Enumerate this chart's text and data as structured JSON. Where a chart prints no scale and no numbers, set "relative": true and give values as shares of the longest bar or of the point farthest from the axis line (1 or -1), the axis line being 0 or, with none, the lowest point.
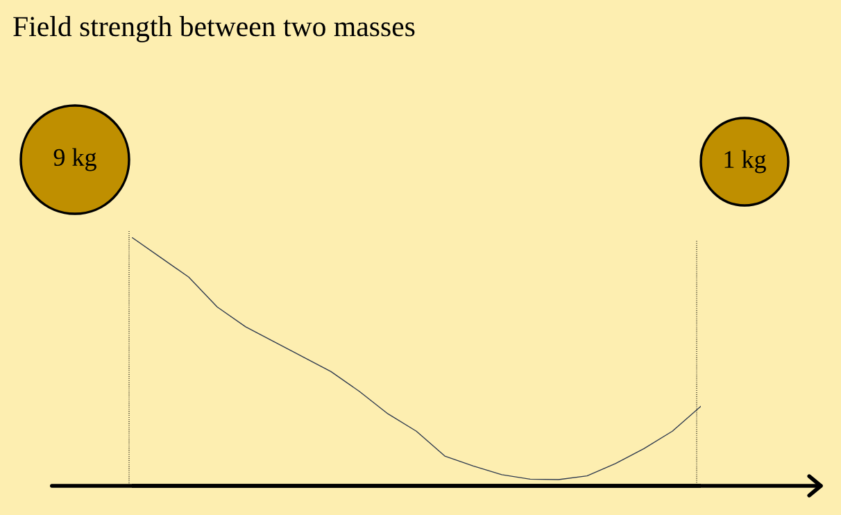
{
  "chart_data": {
    "type": "line",
    "title": "Field strength between two masses",
    "relative": true,
    "categories": [
      null,
      null,
      null,
      null,
      null,
      null,
      null,
      null,
      null,
      null,
      null,
      null,
      null,
      null,
      null,
      null,
      null,
      null,
      null,
      null,
      null
    ],
    "line_style": "solid",
    "series": [
      {
        "color": "#2e3a4f",
        "values": [
          1.0,
          0.92,
          0.84,
          0.72,
          0.64,
          0.58,
          0.52,
          0.46,
          0.38,
          0.29,
          0.22,
          0.12,
          0.08,
          0.045,
          0.027,
          0.025,
          0.04,
          0.09,
          0.15,
          0.22,
          0.32
        ]
      }
    ],
    "annotations": [
      "9 kg",
      "1 kg"
    ]
  }
}
